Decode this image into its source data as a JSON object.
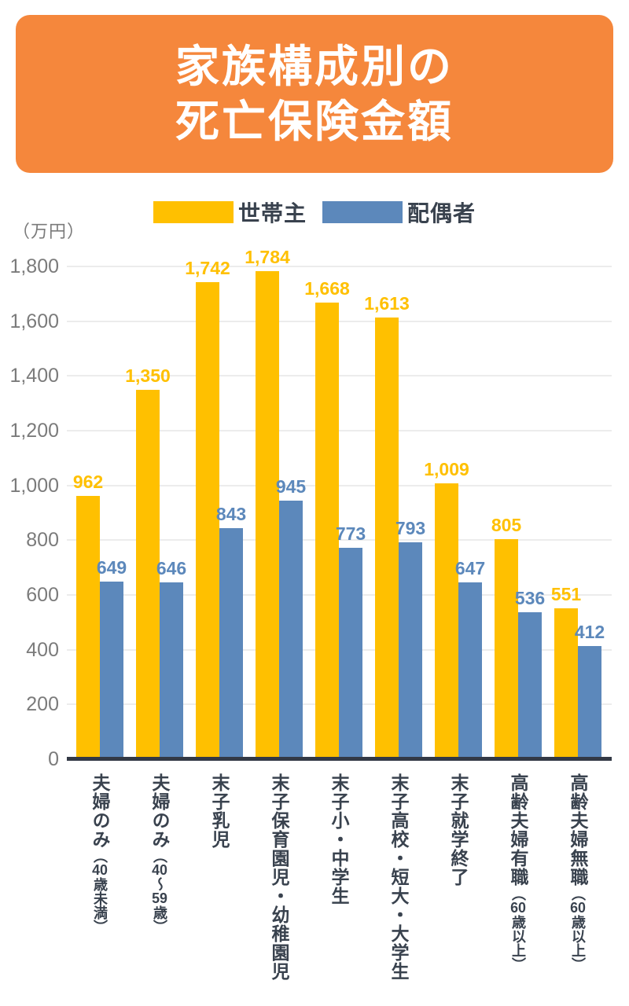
{
  "page": {
    "background": "#ffffff",
    "banner": {
      "title_line1": "家族構成別の",
      "title_line2": "死亡保険金額",
      "bg_color": "#F5873C",
      "text_color": "#ffffff"
    },
    "unit_label": "（万円）"
  },
  "chart_data": {
    "type": "bar",
    "title": "家族構成別の死亡保険金額",
    "ylabel": "（万円）",
    "categories": [
      "夫婦のみ（40歳未満）",
      "夫婦のみ（40～59歳）",
      "末子乳児",
      "末子保育園児・幼稚園児",
      "末子小・中学生",
      "末子高校・短大・大学生",
      "末子就学終了",
      "高齢夫婦有職（60歳以上）",
      "高齢夫婦無職（60歳以上）"
    ],
    "series": [
      {
        "name": "世帯主",
        "color": "#FFC000",
        "values": [
          962,
          1350,
          1742,
          1784,
          1668,
          1613,
          1009,
          805,
          551
        ],
        "value_labels": [
          "962",
          "1,350",
          "1,742",
          "1,784",
          "1,668",
          "1,613",
          "1,009",
          "805",
          "551"
        ]
      },
      {
        "name": "配偶者",
        "color": "#5C88BB",
        "values": [
          649,
          646,
          843,
          945,
          773,
          793,
          647,
          536,
          412
        ],
        "value_labels": [
          "649",
          "646",
          "843",
          "945",
          "773",
          "793",
          "647",
          "536",
          "412"
        ]
      }
    ],
    "ylim": [
      0,
      1800
    ],
    "ytick_step": 200,
    "ytick_labels": [
      "0",
      "200",
      "400",
      "600",
      "800",
      "1,000",
      "1,200",
      "1,400",
      "1,600",
      "1,800"
    ],
    "grid": true,
    "legend_position": "top",
    "colors": {
      "axis": "#333945",
      "grid": "#ECECEC",
      "tick_label": "#7B7B7B",
      "category_label": "#39424E"
    }
  }
}
